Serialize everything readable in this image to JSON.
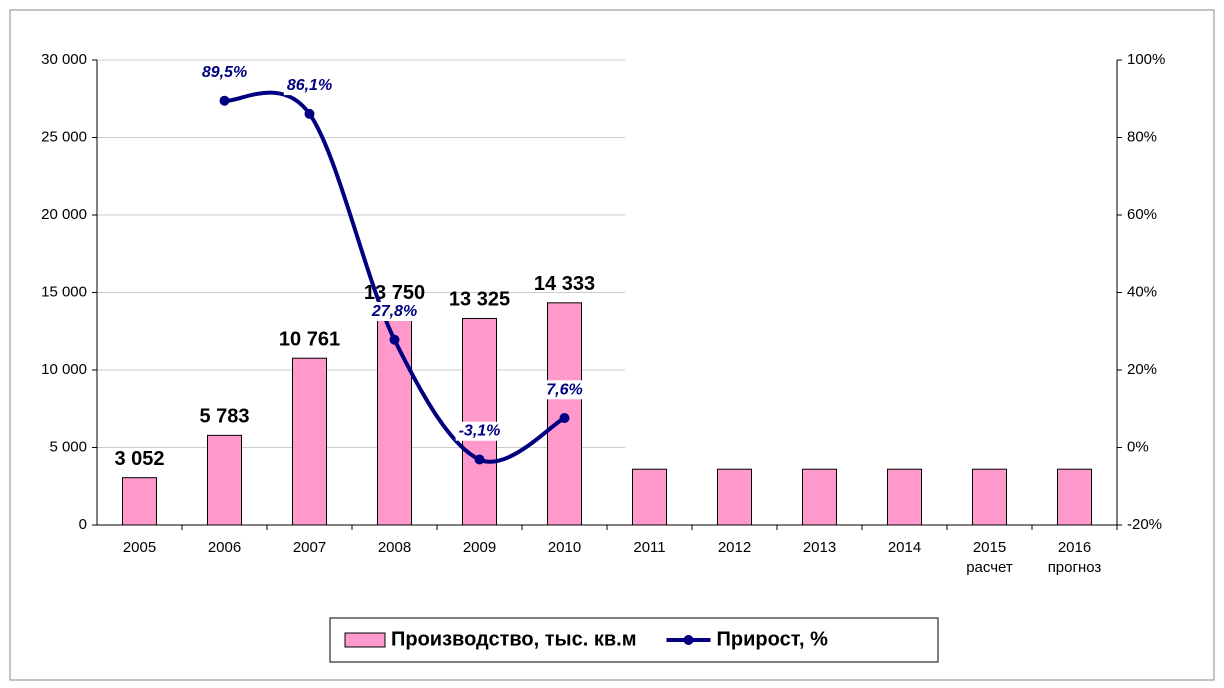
{
  "chart_data": {
    "type": "bar-line",
    "categories": [
      "2005",
      "2006",
      "2007",
      "2008",
      "2009",
      "2010",
      "2011",
      "2012",
      "2013",
      "2014",
      "2015\nрасчет",
      "2016\nпрогноз"
    ],
    "series": [
      {
        "name": "Производство, тыс. кв.м",
        "type": "bar",
        "color": "#ff99cc",
        "values": [
          3052,
          5783,
          10761,
          13750,
          13325,
          14333,
          3600,
          3600,
          3600,
          3600,
          3600,
          3600
        ],
        "value_labels": [
          "3 052",
          "5 783",
          "10 761",
          "13 750",
          "13 325",
          "14 333",
          null,
          null,
          null,
          null,
          null,
          null
        ]
      },
      {
        "name": "Прирост, %",
        "type": "line",
        "axis": "y2",
        "color": "#000080",
        "values": [
          null,
          89.5,
          86.1,
          27.8,
          -3.1,
          7.6,
          null,
          null,
          null,
          null,
          null,
          null
        ],
        "value_labels": [
          null,
          "89,5%",
          "86,1%",
          "27,8%",
          "-3,1%",
          "7,6%",
          null,
          null,
          null,
          null,
          null,
          null
        ]
      }
    ],
    "ylim": [
      0,
      30000
    ],
    "yticks": [
      {
        "value": 0,
        "label": "0"
      },
      {
        "value": 5000,
        "label": "5 000"
      },
      {
        "value": 10000,
        "label": "10 000"
      },
      {
        "value": 15000,
        "label": "15 000"
      },
      {
        "value": 20000,
        "label": "20 000"
      },
      {
        "value": 25000,
        "label": "25 000"
      },
      {
        "value": 30000,
        "label": "30 000"
      }
    ],
    "y2lim": [
      -20,
      100
    ],
    "y2ticks": [
      {
        "value": -20,
        "label": "-20%"
      },
      {
        "value": 0,
        "label": "0%"
      },
      {
        "value": 20,
        "label": "20%"
      },
      {
        "value": 40,
        "label": "40%"
      },
      {
        "value": 60,
        "label": "60%"
      },
      {
        "value": 80,
        "label": "80%"
      },
      {
        "value": 100,
        "label": "100%"
      }
    ],
    "grid": true,
    "legend": "bottom"
  }
}
